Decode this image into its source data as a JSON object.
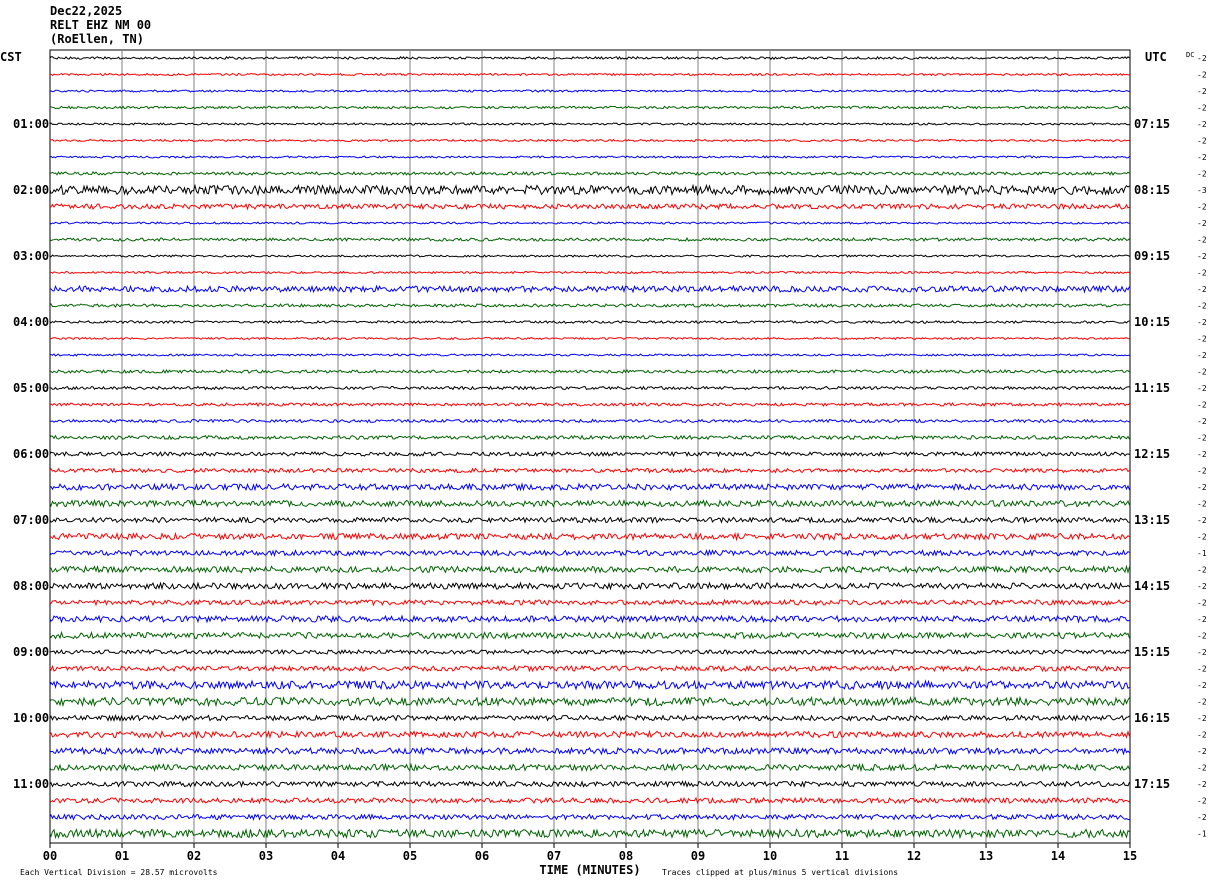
{
  "header": {
    "date": "Dec22,2025",
    "station": "RELT EHZ NM 00",
    "location": "(RoEllen, TN)"
  },
  "chart_data": {
    "type": "line",
    "title": "",
    "xlabel": "TIME (MINUTES)",
    "left_axis_label": "CST",
    "right_axis_label": "UTC",
    "dc_label": "DC",
    "x_ticks": [
      "00",
      "01",
      "02",
      "03",
      "04",
      "05",
      "06",
      "07",
      "08",
      "09",
      "10",
      "11",
      "12",
      "13",
      "14",
      "15"
    ],
    "xlim": [
      0,
      15
    ],
    "trace_colors": [
      "#000000",
      "#ff0000",
      "#0000ff",
      "#006400"
    ],
    "trace_count": 48,
    "minutes_per_trace": 15,
    "left_hour_labels": [
      "01:00",
      "02:00",
      "03:00",
      "04:00",
      "05:00",
      "06:00",
      "07:00",
      "08:00",
      "09:00",
      "10:00",
      "11:00"
    ],
    "right_hour_labels": [
      "07:15",
      "08:15",
      "09:15",
      "10:15",
      "11:15",
      "12:15",
      "13:15",
      "14:15",
      "15:15",
      "16:15",
      "17:15"
    ],
    "dc_offsets": [
      "-2",
      "-2",
      "-2",
      "-2",
      "-2",
      "-2",
      "-2",
      "-2",
      "-3",
      "-2",
      "-2",
      "-2",
      "-2",
      "-2",
      "-2",
      "-2",
      "-2",
      "-2",
      "-2",
      "-2",
      "-2",
      "-2",
      "-2",
      "-2",
      "-2",
      "-2",
      "-2",
      "-2",
      "-2",
      "-2",
      "-1",
      "-2",
      "-2",
      "-2",
      "-2",
      "-2",
      "-2",
      "-2",
      "-2",
      "-2",
      "-2",
      "-2",
      "-2",
      "-2",
      "-2",
      "-2",
      "-2",
      "-1"
    ],
    "amplitudes": [
      1.2,
      1,
      1,
      1.2,
      1,
      1,
      1,
      1.5,
      4.5,
      2.5,
      1,
      1.5,
      1,
      1,
      3,
      1.5,
      1.2,
      1,
      1,
      1.5,
      1.5,
      1.5,
      1.5,
      1.8,
      2,
      2,
      3,
      3,
      2.5,
      3,
      2.5,
      3,
      3,
      2.5,
      3,
      3,
      2,
      2.5,
      4,
      4,
      2.5,
      3,
      3,
      3,
      2.5,
      2.5,
      2.5,
      4
    ],
    "footer_left": "Each Vertical Division =   28.57 microvolts",
    "footer_right": "Traces clipped at plus/minus 5 vertical divisions"
  }
}
